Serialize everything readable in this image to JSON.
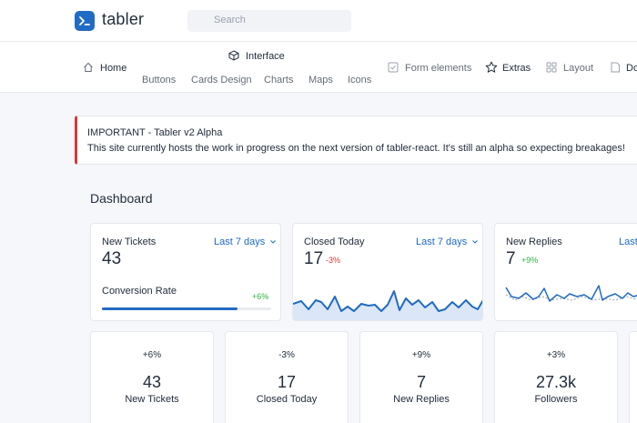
{
  "app": {
    "brand": "tabler"
  },
  "search": {
    "placeholder": "Search"
  },
  "nav": {
    "home": "Home",
    "interface": "Interface",
    "interface_sub": [
      "Buttons",
      "Cards Design",
      "Charts",
      "Maps",
      "Icons"
    ],
    "form_elements": "Form elements",
    "extras": "Extras",
    "layout": "Layout",
    "docs": "Do"
  },
  "alert": {
    "title": "IMPORTANT - Tabler v2 Alpha",
    "text": "This site currently hosts the work in progress on the next version of tabler-react. It's still an alpha so expecting breakages!"
  },
  "page": {
    "title": "Dashboard"
  },
  "stats": [
    {
      "label": "New Tickets",
      "period": "Last 7 days",
      "value": "43",
      "progress_label": "Conversion Rate",
      "progress_delta": "+6%",
      "progress": 0.8
    },
    {
      "label": "Closed Today",
      "period": "Last 7 days",
      "value": "17",
      "delta": "-3%"
    },
    {
      "label": "New Replies",
      "period": "Last",
      "value": "7",
      "delta": "+9%"
    }
  ],
  "mini_cards": [
    {
      "delta": "+6%",
      "value": "43",
      "label": "New Tickets"
    },
    {
      "delta": "-3%",
      "value": "17",
      "label": "Closed Today"
    },
    {
      "delta": "+9%",
      "value": "7",
      "label": "New Replies"
    },
    {
      "delta": "+3%",
      "value": "27.3k",
      "label": "Followers"
    }
  ],
  "colors": {
    "accent": "#206bc4",
    "danger": "#d63939",
    "success": "#2fb344"
  },
  "icons": {
    "logo": "terminal-icon",
    "home": "home-icon",
    "interface": "package-icon",
    "form": "checkbox-icon",
    "extras": "star-icon",
    "layout": "layout-grid-icon",
    "docs": "file-icon"
  }
}
